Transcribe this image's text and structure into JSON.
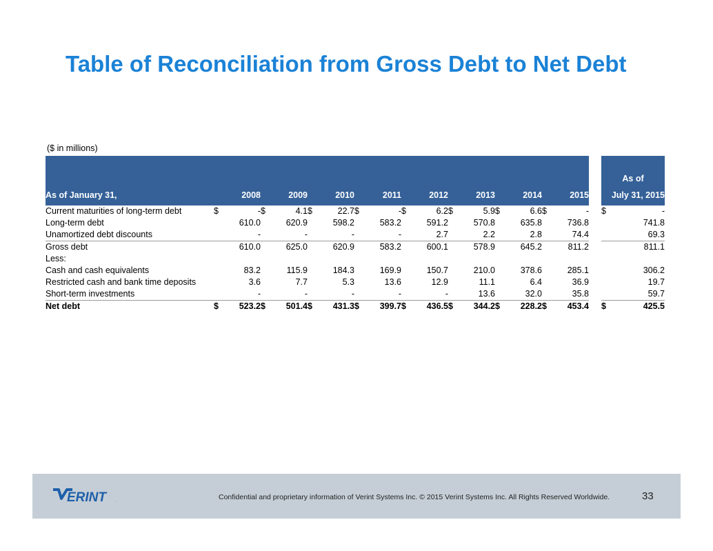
{
  "title": "Table of Reconciliation from Gross Debt to Net Debt",
  "units_note": "($ in millions)",
  "table": {
    "header_asof_top": "As of",
    "header_label": "As of January 31,",
    "years": [
      "2008",
      "2009",
      "2010",
      "2011",
      "2012",
      "2013",
      "2014",
      "2015"
    ],
    "header_last": "July 31, 2015",
    "rows": [
      {
        "label": "Current maturities of long-term debt",
        "cur": true,
        "values": [
          "-",
          "4.1",
          "22.7",
          "-",
          "6.2",
          "5.9",
          "6.6",
          "-"
        ],
        "last": "-"
      },
      {
        "label": "Long-term debt",
        "cur": false,
        "values": [
          "610.0",
          "620.9",
          "598.2",
          "583.2",
          "591.2",
          "570.8",
          "635.8",
          "736.8"
        ],
        "last": "741.8"
      },
      {
        "label": "Unamortized debt discounts",
        "cur": false,
        "values": [
          "-",
          "-",
          "-",
          "-",
          "2.7",
          "2.2",
          "2.8",
          "74.4"
        ],
        "last": "69.3"
      },
      {
        "label": "Gross debt",
        "cur": false,
        "line": true,
        "values": [
          "610.0",
          "625.0",
          "620.9",
          "583.2",
          "600.1",
          "578.9",
          "645.2",
          "811.2"
        ],
        "last": "811.1"
      },
      {
        "label": "Less:",
        "cur": false,
        "values": [
          "",
          "",
          "",
          "",
          "",
          "",
          "",
          ""
        ],
        "last": ""
      },
      {
        "label": "Cash and cash equivalents",
        "cur": false,
        "values": [
          "83.2",
          "115.9",
          "184.3",
          "169.9",
          "150.7",
          "210.0",
          "378.6",
          "285.1"
        ],
        "last": "306.2"
      },
      {
        "label": "Restricted cash and bank time deposits",
        "cur": false,
        "values": [
          "3.6",
          "7.7",
          "5.3",
          "13.6",
          "12.9",
          "11.1",
          "6.4",
          "36.9"
        ],
        "last": "19.7"
      },
      {
        "label": "Short-term investments",
        "cur": false,
        "values": [
          "-",
          "-",
          "-",
          "-",
          "-",
          "13.6",
          "32.0",
          "35.8"
        ],
        "last": "59.7"
      },
      {
        "label": "Net debt",
        "cur": true,
        "line": true,
        "bold": true,
        "values": [
          "523.2",
          "501.4",
          "431.3",
          "399.7",
          "436.5",
          "344.2",
          "228.2",
          "453.4"
        ],
        "last": "425.5"
      }
    ],
    "currency_symbol": "$"
  },
  "footer": {
    "logo_text": "VERINT",
    "confidential": "Confidential and proprietary information of Verint Systems Inc.  © 2015 Verint Systems Inc. All Rights Reserved Worldwide.",
    "page_number": "33"
  },
  "colors": {
    "title": "#1b82d6",
    "header_bg": "#356198",
    "footer_bg": "#c5ced6",
    "logo": "#1e5fa8"
  }
}
